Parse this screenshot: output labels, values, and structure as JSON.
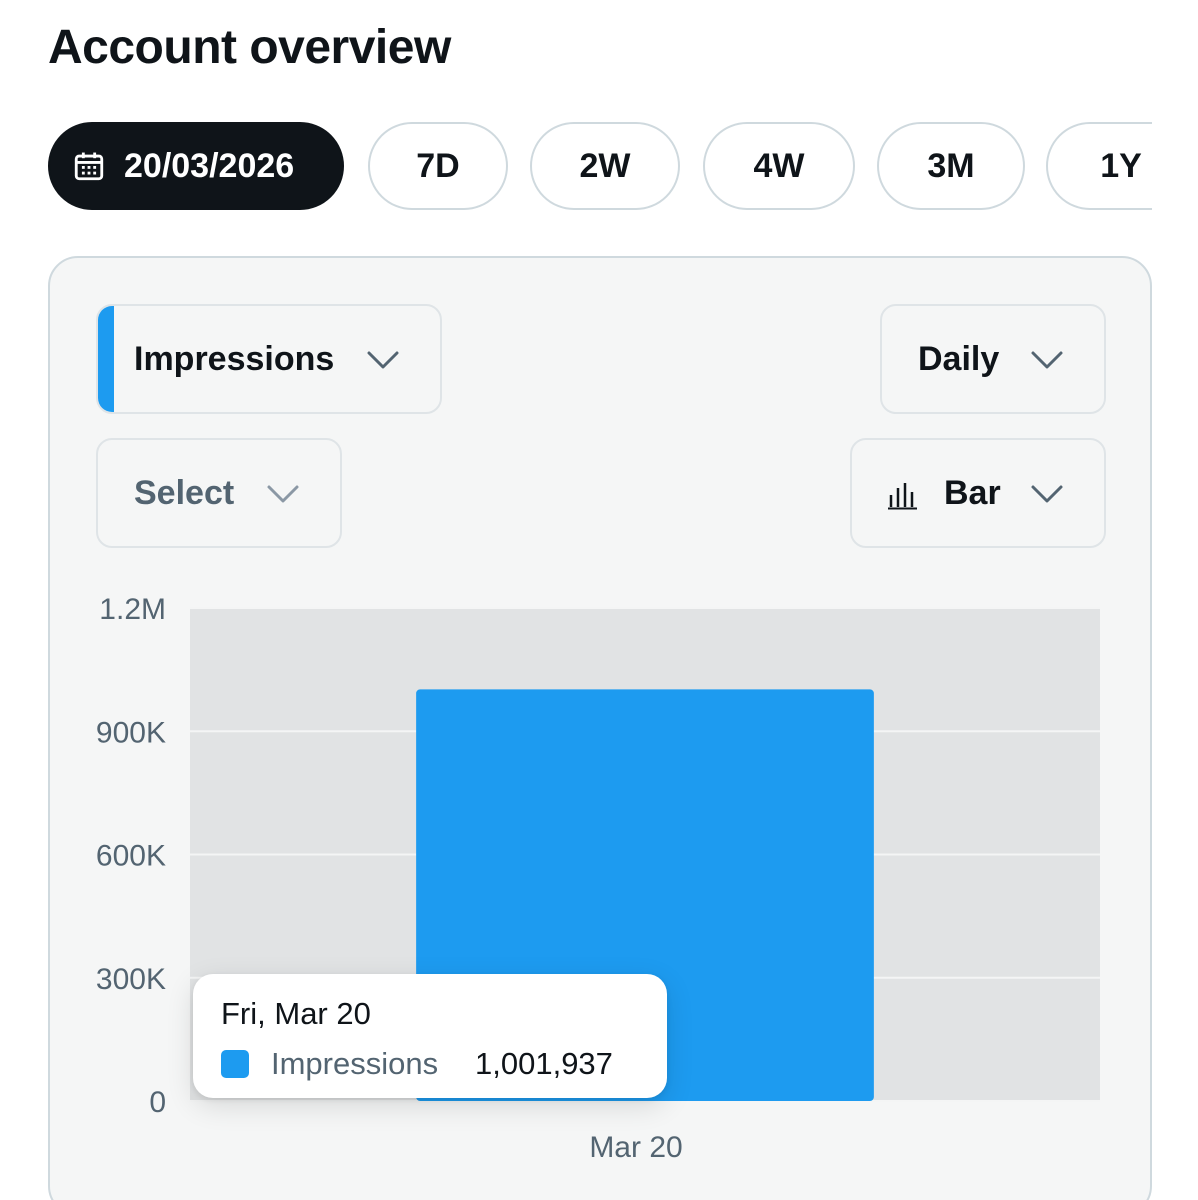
{
  "header": {
    "title": "Account overview"
  },
  "range": {
    "date_label": "20/03/2026",
    "options": [
      "7D",
      "2W",
      "4W",
      "3M",
      "1Y"
    ]
  },
  "controls": {
    "metric": "Impressions",
    "interval": "Daily",
    "compare": "Select",
    "chart_type": "Bar"
  },
  "colors": {
    "accent": "#1d9bf0",
    "active_chip": "#0f1419",
    "plot_background": "#e1e3e4"
  },
  "tooltip": {
    "date": "Fri, Mar 20",
    "series": "Impressions",
    "value": "1,001,937"
  },
  "chart_data": {
    "type": "bar",
    "categories": [
      "Mar 20"
    ],
    "series": [
      {
        "name": "Impressions",
        "values": [
          1001937
        ]
      }
    ],
    "ylim": [
      0,
      1200000
    ],
    "y_ticks": [
      0,
      300000,
      600000,
      900000,
      1200000
    ],
    "y_tick_labels": [
      "0",
      "300K",
      "600K",
      "900K",
      "1.2M"
    ],
    "grid": true
  }
}
